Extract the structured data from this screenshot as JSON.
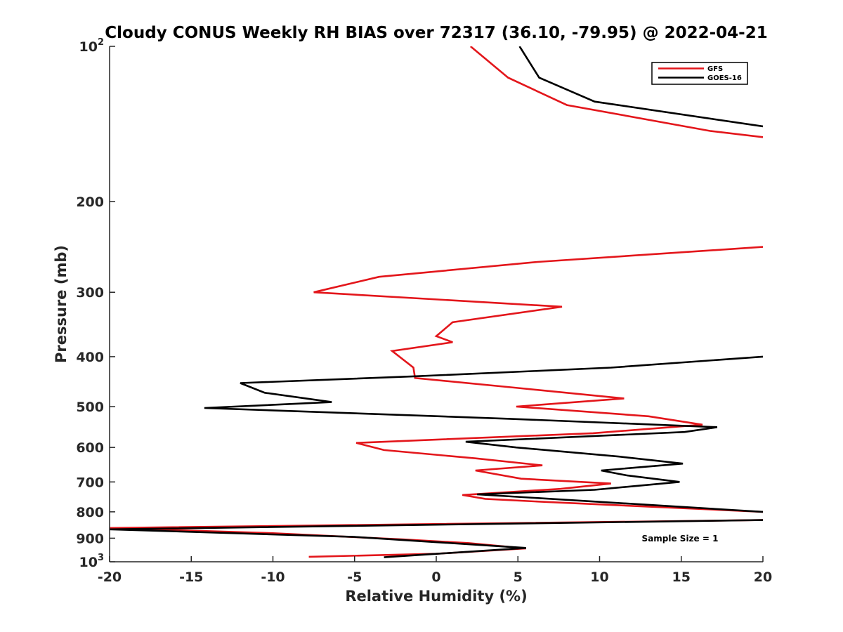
{
  "chart_data": {
    "type": "line",
    "title": "Cloudy CONUS Weekly RH BIAS over 72317 (36.10, -79.95) @ 2022-04-21",
    "xlabel": "Relative Humidity (%)",
    "ylabel": "Pressure (mb)",
    "xlim": [
      -20,
      20
    ],
    "ylim": [
      100,
      1000
    ],
    "y_scale": "log",
    "y_reversed": true,
    "grid": false,
    "legend_placement": "top-right",
    "x_ticks": [
      {
        "value": -20,
        "label": "-20"
      },
      {
        "value": -15,
        "label": "-15"
      },
      {
        "value": -10,
        "label": "-10"
      },
      {
        "value": -5,
        "label": "-5"
      },
      {
        "value": 0,
        "label": "0"
      },
      {
        "value": 5,
        "label": "5"
      },
      {
        "value": 10,
        "label": "10"
      },
      {
        "value": 15,
        "label": "15"
      },
      {
        "value": 20,
        "label": "20"
      }
    ],
    "y_ticks": [
      {
        "value": 100,
        "label": "10",
        "exp": "2"
      },
      {
        "value": 200,
        "label": "200"
      },
      {
        "value": 300,
        "label": "300"
      },
      {
        "value": 400,
        "label": "400"
      },
      {
        "value": 500,
        "label": "500"
      },
      {
        "value": 600,
        "label": "600"
      },
      {
        "value": 700,
        "label": "700"
      },
      {
        "value": 800,
        "label": "800"
      },
      {
        "value": 900,
        "label": "900"
      },
      {
        "value": 1000,
        "label": "10",
        "exp": "3"
      }
    ],
    "series": [
      {
        "name": "GFS",
        "color": "#e3161b",
        "segments": [
          [
            [
              2.1,
              100
            ],
            [
              4.4,
              115
            ],
            [
              8.0,
              130
            ],
            [
              16.8,
              146
            ],
            [
              20.0,
              150
            ]
          ],
          [
            [
              20.0,
              245
            ],
            [
              6.2,
              262
            ],
            [
              -3.5,
              280
            ],
            [
              -7.5,
              300
            ],
            [
              7.7,
              320
            ],
            [
              1.0,
              343
            ],
            [
              0.0,
              365
            ],
            [
              1.0,
              375
            ],
            [
              -2.7,
              390
            ],
            [
              -1.4,
              420
            ],
            [
              -1.3,
              440
            ],
            [
              5.0,
              460
            ],
            [
              11.5,
              482
            ],
            [
              4.9,
              500
            ],
            [
              13.0,
              522
            ],
            [
              16.3,
              542
            ],
            [
              9.6,
              563
            ],
            [
              -4.9,
              588
            ],
            [
              -3.2,
              607
            ],
            [
              2.4,
              630
            ],
            [
              6.5,
              650
            ],
            [
              2.4,
              665
            ],
            [
              5.2,
              690
            ],
            [
              10.7,
              705
            ],
            [
              7.6,
              722
            ],
            [
              1.6,
              742
            ],
            [
              3.0,
              755
            ],
            [
              6.5,
              765
            ],
            [
              20.0,
              800
            ]
          ],
          [
            [
              20.0,
              830
            ],
            [
              -20.0,
              860
            ],
            [
              -10.0,
              880
            ],
            [
              -2.0,
              905
            ],
            [
              2.0,
              920
            ],
            [
              5.5,
              942
            ],
            [
              0.0,
              965
            ],
            [
              -7.8,
              978
            ]
          ]
        ]
      },
      {
        "name": "GOES-16",
        "color": "#000000",
        "segments": [
          [
            [
              5.1,
              100
            ],
            [
              6.3,
              115
            ],
            [
              9.7,
              128
            ],
            [
              20.0,
              143
            ]
          ],
          [
            [
              20.0,
              400
            ],
            [
              10.7,
              420
            ],
            [
              -1.5,
              437
            ],
            [
              -12.0,
              450
            ],
            [
              -10.5,
              470
            ],
            [
              -6.4,
              490
            ],
            [
              -14.2,
              503
            ],
            [
              4.5,
              528
            ],
            [
              17.2,
              548
            ],
            [
              15.2,
              560
            ],
            [
              1.8,
              585
            ],
            [
              4.9,
              600
            ],
            [
              11.2,
              625
            ],
            [
              15.1,
              645
            ],
            [
              10.1,
              665
            ],
            [
              11.7,
              680
            ],
            [
              14.9,
              700
            ],
            [
              9.7,
              725
            ],
            [
              2.5,
              740
            ],
            [
              20.0,
              800
            ]
          ],
          [
            [
              20.0,
              830
            ],
            [
              -20.0,
              865
            ],
            [
              -5.0,
              895
            ],
            [
              5.5,
              940
            ],
            [
              -3.2,
              980
            ]
          ]
        ]
      }
    ],
    "annotations": [
      "Sample Size = 1"
    ]
  }
}
